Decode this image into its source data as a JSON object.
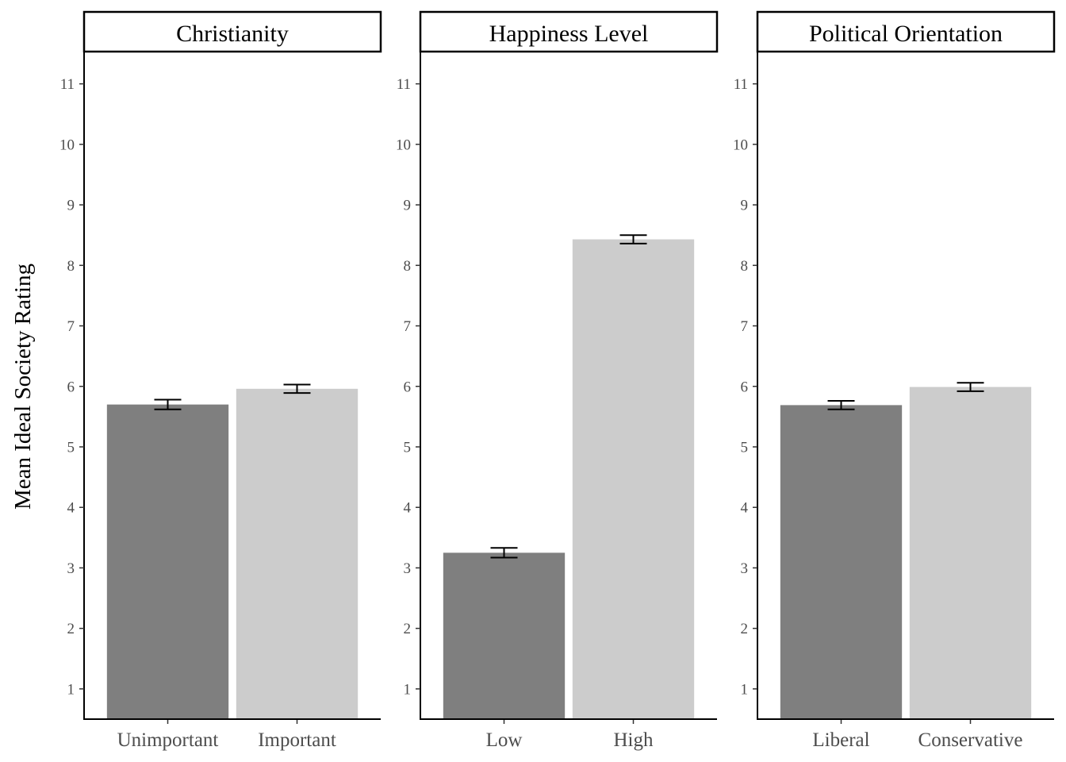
{
  "chart_data": {
    "type": "bar",
    "ylabel": "Mean Ideal Society Rating",
    "yticks": [
      1,
      2,
      3,
      4,
      5,
      6,
      7,
      8,
      9,
      10,
      11
    ],
    "ylim": [
      0.5,
      11.52
    ],
    "grid": false,
    "colors": {
      "first_bar": "#7f7f7f",
      "second_bar": "#cccccc",
      "error_bar": "#000000"
    },
    "panels": [
      {
        "title": "Christianity",
        "categories": [
          "Unimportant",
          "Important"
        ],
        "values": [
          5.7,
          5.96
        ],
        "error": [
          0.08,
          0.07
        ]
      },
      {
        "title": "Happiness Level",
        "categories": [
          "Low",
          "High"
        ],
        "values": [
          3.25,
          8.43
        ],
        "error": [
          0.08,
          0.07
        ]
      },
      {
        "title": "Political Orientation",
        "categories": [
          "Liberal",
          "Conservative"
        ],
        "values": [
          5.69,
          5.99
        ],
        "error": [
          0.07,
          0.07
        ]
      }
    ]
  }
}
